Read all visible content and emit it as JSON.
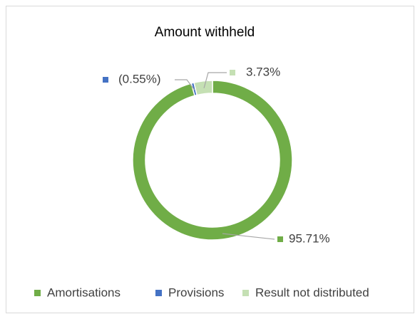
{
  "chart_data": {
    "type": "donut",
    "title": "Amount withheld",
    "categories": [
      "Amortisations",
      "Provisions",
      "Result not distributed"
    ],
    "values": [
      95.71,
      -0.55,
      3.73
    ],
    "value_labels": [
      "95.71%",
      "(0.55%)",
      "3.73%"
    ],
    "colors": [
      "#70ad47",
      "#4472c4",
      "#c5e0b4"
    ],
    "legend": "bottom"
  }
}
